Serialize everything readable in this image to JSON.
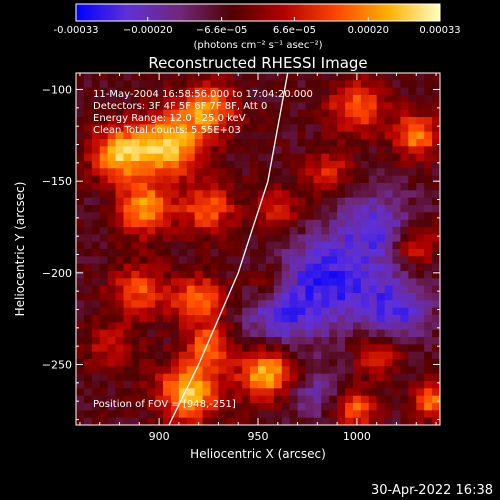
{
  "chart_data": {
    "type": "heatmap",
    "title": "Reconstructed RHESSI Image",
    "xlabel": "Heliocentric X (arcsec)",
    "ylabel": "Heliocentric Y (arcsec)",
    "xlim": [
      858,
      1042
    ],
    "ylim": [
      -283,
      -91
    ],
    "x_ticks": [
      900,
      950,
      1000
    ],
    "y_ticks": [
      -100,
      -150,
      -200,
      -250
    ],
    "colorbar": {
      "range": [
        -0.00033,
        0.00033
      ],
      "ticks": [
        -0.00033,
        -0.0002,
        -6.6e-05,
        6.6e-05,
        0.0002,
        0.00033
      ],
      "tick_labels": [
        "-0.00033",
        "−0.00020",
        "−6.6e−05",
        "6.6e−05",
        "0.00020",
        "0.00033"
      ],
      "label": "(photons cm⁻² s⁻¹ asec⁻²)",
      "colors": [
        "#0000ff",
        "#6030d8",
        "#702878",
        "#500000",
        "#b40000",
        "#ff4400",
        "#ffb000",
        "#ffffc0"
      ]
    },
    "annotations": [
      "11-May-2004 16:58:56.000 to 17:04:20.000",
      "Detectors: 3F 4F 5F 6F 7F 8F, Att 0",
      "Energy Range: 12.0 - 25.0 keV",
      "Clean     Total counts: 5.55E+03"
    ],
    "position_label": "Position of FOV = [948,-251]",
    "limb_points": [
      [
        965,
        -91
      ],
      [
        955,
        -150
      ],
      [
        940,
        -200
      ],
      [
        920,
        -250
      ],
      [
        905,
        -283
      ]
    ],
    "pixel_grid": {
      "columns": 46,
      "rows": 48
    },
    "bright_regions": [
      {
        "x": 880,
        "y": -135,
        "value": 0.0003,
        "sigma": 10
      },
      {
        "x": 905,
        "y": -130,
        "value": 0.00033,
        "sigma": 12
      },
      {
        "x": 925,
        "y": -110,
        "value": 0.00026,
        "sigma": 10
      },
      {
        "x": 893,
        "y": -165,
        "value": 0.00028,
        "sigma": 10
      },
      {
        "x": 925,
        "y": -165,
        "value": 0.00022,
        "sigma": 9
      },
      {
        "x": 890,
        "y": -210,
        "value": 0.0002,
        "sigma": 10
      },
      {
        "x": 920,
        "y": -215,
        "value": 0.00024,
        "sigma": 9
      },
      {
        "x": 960,
        "y": -165,
        "value": 0.00014,
        "sigma": 9
      },
      {
        "x": 1000,
        "y": -110,
        "value": 0.00022,
        "sigma": 10
      },
      {
        "x": 1030,
        "y": -125,
        "value": 0.00026,
        "sigma": 8
      },
      {
        "x": 985,
        "y": -145,
        "value": 0.00016,
        "sigma": 8
      },
      {
        "x": 1030,
        "y": -185,
        "value": 0.00018,
        "sigma": 8
      },
      {
        "x": 875,
        "y": -240,
        "value": 0.00012,
        "sigma": 9
      },
      {
        "x": 915,
        "y": -265,
        "value": 0.00033,
        "sigma": 11
      },
      {
        "x": 955,
        "y": -255,
        "value": 0.00032,
        "sigma": 10
      },
      {
        "x": 925,
        "y": -240,
        "value": 0.00022,
        "sigma": 8
      },
      {
        "x": 1010,
        "y": -245,
        "value": 0.00018,
        "sigma": 8
      },
      {
        "x": 1000,
        "y": -275,
        "value": 0.00022,
        "sigma": 7
      },
      {
        "x": 1038,
        "y": -270,
        "value": 0.00024,
        "sigma": 7
      },
      {
        "x": 955,
        "y": -205,
        "value": 0.00012,
        "sigma": 7
      }
    ],
    "dim_regions": [
      {
        "x": 985,
        "y": -205,
        "value": -0.00022,
        "sigma": 18
      },
      {
        "x": 1010,
        "y": -175,
        "value": -0.00016,
        "sigma": 14
      },
      {
        "x": 960,
        "y": -225,
        "value": -0.00015,
        "sigma": 12
      },
      {
        "x": 975,
        "y": -265,
        "value": -0.00012,
        "sigma": 10
      },
      {
        "x": 1020,
        "y": -220,
        "value": -0.00018,
        "sigma": 12
      }
    ]
  },
  "footer": {
    "timestamp": "30-Apr-2022 16:38"
  }
}
